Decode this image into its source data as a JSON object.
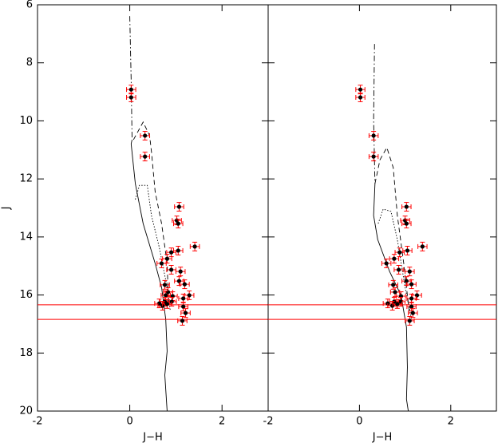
{
  "chart_data": [
    {
      "type": "scatter",
      "xlabel": "J−H",
      "ylabel": "J",
      "xlim": [
        -2,
        3
      ],
      "ylim": [
        20,
        6
      ],
      "xticks": [
        -2,
        0,
        2
      ],
      "yticks": [
        6,
        8,
        10,
        12,
        14,
        16,
        18,
        20
      ],
      "color": "#000000",
      "error_color": "#ff0000",
      "xerr": 0.1,
      "yerr": 0.15,
      "x": [
        0.03,
        0.03,
        0.33,
        0.33,
        1.07,
        1.02,
        1.05,
        1.41,
        1.05,
        0.9,
        0.81,
        0.69,
        0.9,
        1.1,
        1.07,
        1.19,
        0.76,
        1.29,
        0.83,
        0.78,
        0.93,
        1.16,
        0.91,
        0.76,
        0.64,
        0.71,
        0.81,
        1.16,
        1.21,
        1.14
      ],
      "y": [
        8.92,
        9.19,
        10.51,
        11.23,
        12.96,
        13.43,
        13.54,
        14.33,
        14.47,
        14.53,
        14.75,
        14.91,
        15.13,
        15.19,
        15.52,
        15.63,
        15.65,
        16.01,
        15.9,
        16.01,
        16.04,
        16.12,
        16.23,
        16.23,
        16.29,
        16.37,
        16.31,
        16.4,
        16.62,
        16.89
      ],
      "hlines": [
        16.34,
        16.84
      ],
      "lines": [
        {
          "style": "dashdot",
          "x": [
            0,
            0.03,
            0.05
          ],
          "y": [
            6.39,
            8.59,
            10.65
          ]
        },
        {
          "style": "solid",
          "x": [
            0.05,
            0.03,
            0.12,
            0.29,
            0.55,
            0.69,
            0.78,
            0.81,
            0.76,
            0.81
          ],
          "y": [
            10.65,
            10.79,
            12.16,
            13.54,
            14.91,
            15.74,
            16.84,
            17.94,
            18.76,
            20
          ]
        },
        {
          "style": "dashed",
          "x": [
            0.08,
            0.29,
            0.43,
            0.47,
            0.55,
            0.69,
            0.81,
            0.84
          ],
          "y": [
            10.65,
            10.04,
            10.51,
            11.06,
            12.44,
            13.54,
            14.91,
            16.29
          ]
        },
        {
          "style": "dotted",
          "x": [
            0.12,
            0.21,
            0.38,
            0.47,
            0.64,
            0.81,
            0.88
          ],
          "y": [
            12.71,
            12.22,
            12.22,
            13.26,
            14.36,
            15.74,
            16.56
          ]
        }
      ]
    },
    {
      "type": "scatter",
      "xlabel": "J−H",
      "xlim": [
        -2,
        3
      ],
      "ylim": [
        20,
        6
      ],
      "xticks": [
        -2,
        0,
        2
      ],
      "yticks": [
        6,
        8,
        10,
        12,
        14,
        16,
        18,
        20
      ],
      "color": "#000000",
      "error_color": "#ff0000",
      "xerr": 0.1,
      "yerr": 0.15,
      "x": [
        0.02,
        0.02,
        0.31,
        0.31,
        1.03,
        1.0,
        1.03,
        1.38,
        1.05,
        0.88,
        0.76,
        0.59,
        0.86,
        1.1,
        1.03,
        1.14,
        0.74,
        1.26,
        0.78,
        0.91,
        1.14,
        0.9,
        0.76,
        0.62,
        0.72,
        0.83,
        1.14,
        1.17,
        1.1
      ],
      "y": [
        8.92,
        9.19,
        10.51,
        11.23,
        12.96,
        13.43,
        13.54,
        14.33,
        14.47,
        14.53,
        14.75,
        14.91,
        15.13,
        15.19,
        15.52,
        15.63,
        15.65,
        16.01,
        15.9,
        16.04,
        16.12,
        16.23,
        16.23,
        16.29,
        16.37,
        16.31,
        16.4,
        16.62,
        16.89
      ],
      "hlines": [
        16.34,
        16.84
      ],
      "lines": [
        {
          "style": "dashdot",
          "x": [
            0.33,
            0.31,
            0.34
          ],
          "y": [
            7.35,
            9.96,
            12.16
          ]
        },
        {
          "style": "dashed",
          "x": [
            0.34,
            0.45,
            0.6,
            0.74,
            0.83,
            0.97,
            1.09
          ],
          "y": [
            12.16,
            11.34,
            10.92,
            11.61,
            13.26,
            14.91,
            16.56
          ]
        },
        {
          "style": "dotted",
          "x": [
            0.41,
            0.52,
            0.69,
            0.83,
            1.0,
            1.14
          ],
          "y": [
            13.54,
            13.04,
            13.12,
            14.09,
            15.74,
            16.84
          ]
        },
        {
          "style": "solid",
          "x": [
            0.34,
            0.31,
            0.4,
            0.66,
            0.91,
            1.03,
            1.05,
            1.03,
            1.07
          ],
          "y": [
            12.16,
            13.26,
            14.09,
            15.19,
            16.01,
            17.11,
            18.49,
            19.59,
            20
          ]
        }
      ]
    }
  ]
}
